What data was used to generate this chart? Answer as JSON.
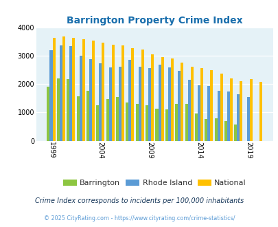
{
  "title": "Barrington Property Crime Index",
  "title_color": "#1a6fad",
  "years": [
    1999,
    2000,
    2001,
    2002,
    2003,
    2004,
    2005,
    2006,
    2007,
    2008,
    2009,
    2010,
    2011,
    2012,
    2013,
    2014,
    2015,
    2016,
    2017,
    2018,
    2019,
    2020
  ],
  "barrington": [
    1900,
    2200,
    2175,
    1575,
    1760,
    1250,
    1460,
    1550,
    1340,
    1295,
    1245,
    1135,
    1110,
    1300,
    1295,
    970,
    760,
    790,
    695,
    565,
    0,
    0
  ],
  "rhode_island": [
    3190,
    3370,
    3340,
    2990,
    2880,
    2730,
    2595,
    2615,
    2840,
    2600,
    2550,
    2680,
    2590,
    2455,
    2145,
    1945,
    1930,
    1755,
    1745,
    1650,
    1540,
    0
  ],
  "national": [
    3630,
    3665,
    3620,
    3580,
    3530,
    3450,
    3390,
    3355,
    3270,
    3210,
    3040,
    2960,
    2905,
    2745,
    2615,
    2570,
    2495,
    2360,
    2185,
    2110,
    2170,
    2080
  ],
  "bar_width": 0.28,
  "colors": {
    "barrington": "#8dc641",
    "rhode_island": "#5b9bd5",
    "national": "#ffc000"
  },
  "plot_bg": "#e5f2f7",
  "ylim": [
    0,
    4000
  ],
  "yticks": [
    0,
    1000,
    2000,
    3000,
    4000
  ],
  "xlabel_years": [
    1999,
    2004,
    2009,
    2014,
    2019
  ],
  "legend_labels": [
    "Barrington",
    "Rhode Island",
    "National"
  ],
  "legend_text_color": "#333333",
  "footnote": "Crime Index corresponds to incidents per 100,000 inhabitants",
  "footnote_color": "#1a3a5c",
  "copyright": "© 2025 CityRating.com - https://www.cityrating.com/crime-statistics/",
  "copyright_color": "#5b9bd5"
}
